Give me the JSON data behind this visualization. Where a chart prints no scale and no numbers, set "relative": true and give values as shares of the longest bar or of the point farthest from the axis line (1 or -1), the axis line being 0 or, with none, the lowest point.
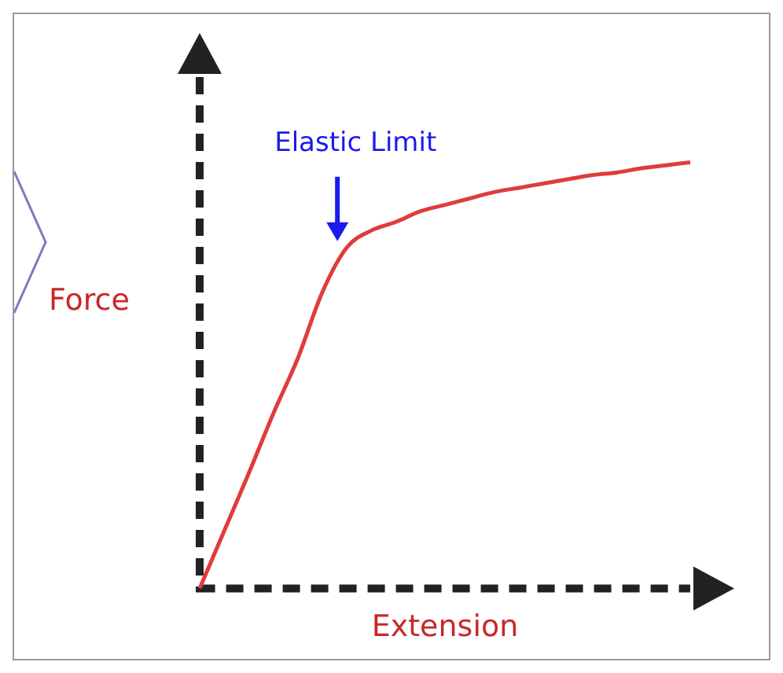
{
  "chart_data": {
    "type": "line",
    "relative": true,
    "xlabel": "Extension",
    "ylabel": "Force",
    "annotations": [
      "Elastic Limit"
    ],
    "marker": "none",
    "line_style": "solid",
    "categories": [
      null,
      null,
      null,
      null,
      null,
      null,
      null,
      null,
      null,
      null,
      null,
      null,
      null,
      null,
      null,
      null,
      null,
      null,
      null,
      null,
      null
    ],
    "series": [
      {
        "color": "#e03c3c",
        "values": [
          0,
          0.135,
          0.27,
          0.41,
          0.54,
          0.695,
          0.8,
          0.84,
          0.86,
          0.885,
          0.9,
          0.915,
          0.93,
          0.94,
          0.95,
          0.96,
          0.97,
          0.976,
          0.986,
          0.993,
          1
        ]
      }
    ]
  }
}
